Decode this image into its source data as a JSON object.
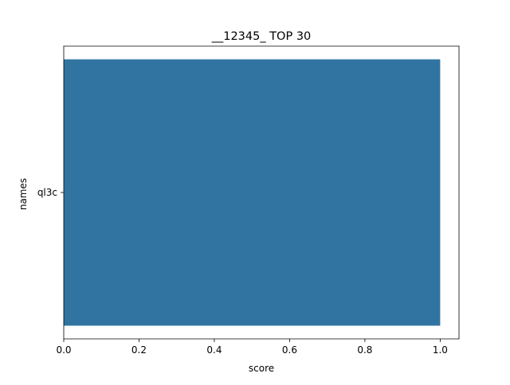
{
  "chart_data": {
    "type": "bar",
    "orientation": "horizontal",
    "title": "__12345_ TOP 30",
    "xlabel": "score",
    "ylabel": "names",
    "categories": [
      "ql3c"
    ],
    "values": [
      1.0
    ],
    "xlim": [
      0,
      1.05
    ],
    "xticks": [
      0.0,
      0.2,
      0.4,
      0.6,
      0.8,
      1.0
    ],
    "xtick_labels": [
      "0.0",
      "0.2",
      "0.4",
      "0.6",
      "0.8",
      "1.0"
    ],
    "grid": false,
    "legend": "none",
    "colors": {
      "bar": "#3274a1",
      "axis": "#000000"
    }
  }
}
